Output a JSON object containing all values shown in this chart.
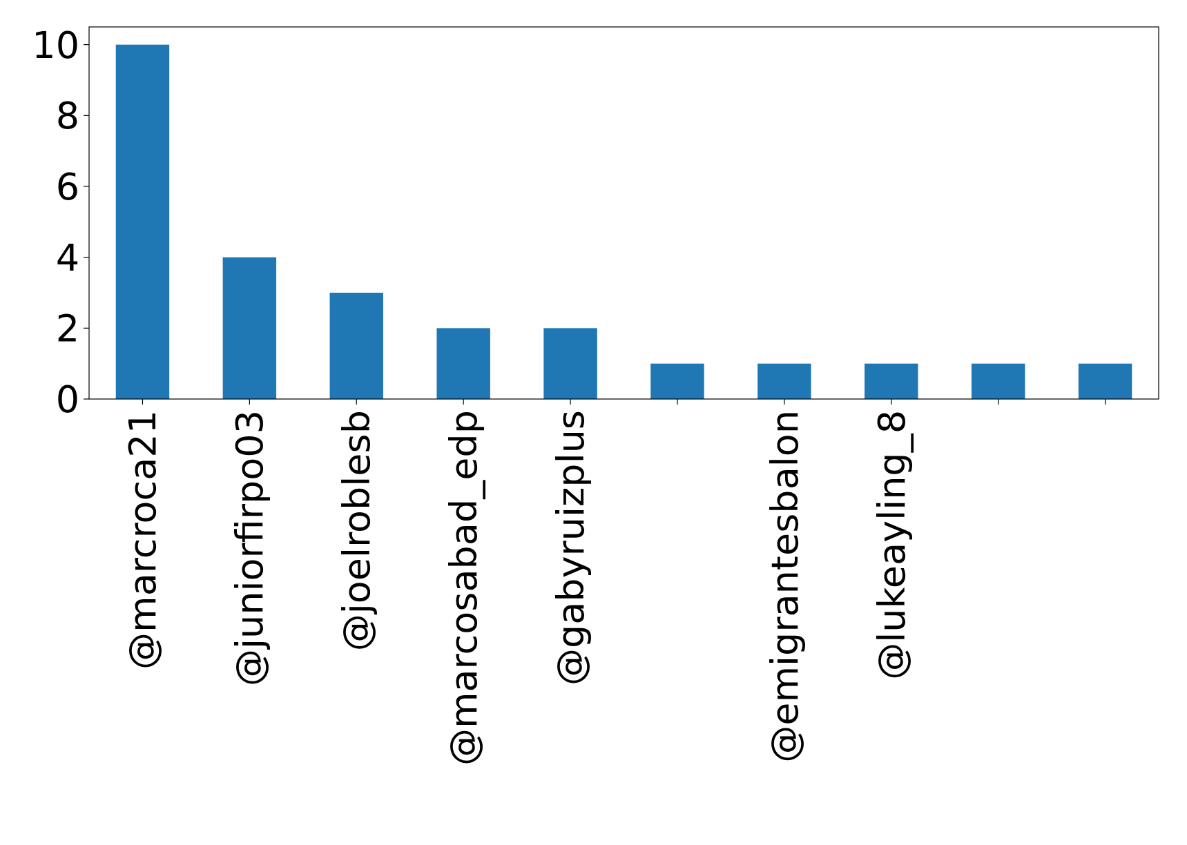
{
  "chart_data": {
    "type": "bar",
    "categories": [
      "@marcroca21",
      "@juniorfirpo03",
      "@joelroblesb",
      "@marcosabad_edp",
      "@gabyruizplus",
      null,
      "@emigrantesbalon",
      "@lukeayling_8",
      null,
      null
    ],
    "values": [
      10,
      4,
      3,
      2,
      2,
      1,
      1,
      1,
      1,
      1
    ],
    "color": "#1f77b4",
    "ylim": [
      0,
      10.5
    ],
    "yticks": [
      0,
      2,
      4,
      6,
      8,
      10
    ],
    "grid": false
  }
}
